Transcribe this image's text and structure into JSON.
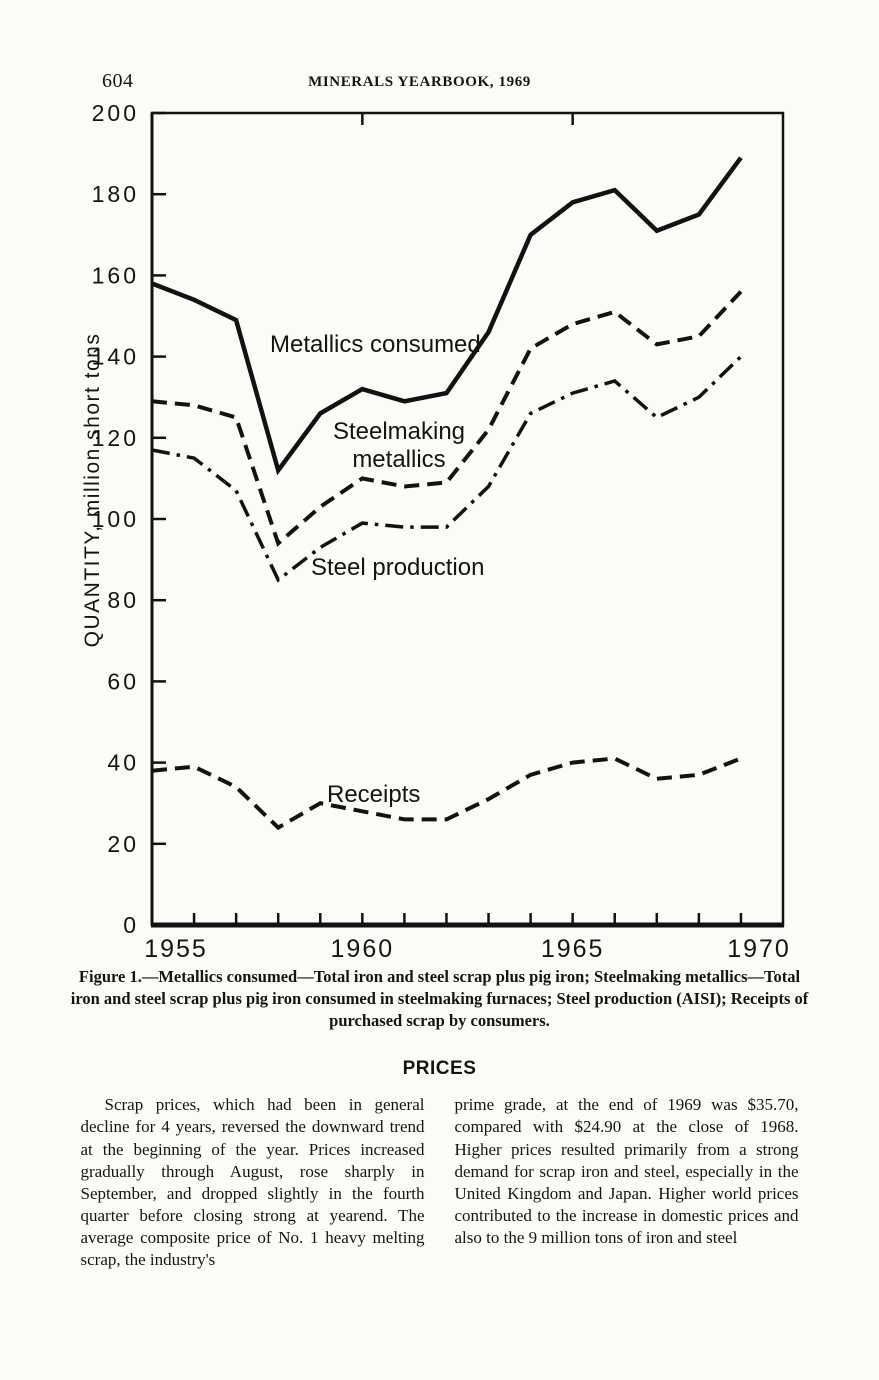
{
  "header": {
    "page_number": "604",
    "running_title": "MINERALS YEARBOOK, 1969"
  },
  "chart_data": {
    "type": "line",
    "title": "",
    "ylabel": "QUANTITY, million short tons",
    "xlabel": "",
    "ylim": [
      0,
      200
    ],
    "ytick_step": 20,
    "xlim": [
      1955,
      1970
    ],
    "xticks": [
      1955,
      1960,
      1965,
      1970
    ],
    "grid": "off",
    "legend_position": "inline-labels",
    "x": [
      1955,
      1956,
      1957,
      1958,
      1959,
      1960,
      1961,
      1962,
      1963,
      1964,
      1965,
      1966,
      1967,
      1968,
      1969
    ],
    "series": [
      {
        "name": "Metallics consumed",
        "style": "solid",
        "values": [
          158,
          154,
          149,
          112,
          126,
          132,
          129,
          131,
          146,
          170,
          178,
          181,
          171,
          175,
          189
        ]
      },
      {
        "name": "Steelmaking metallics",
        "style": "dashed",
        "values": [
          129,
          128,
          125,
          94,
          103,
          110,
          108,
          109,
          122,
          142,
          148,
          151,
          143,
          145,
          156
        ]
      },
      {
        "name": "Steel production",
        "style": "dashdot",
        "values": [
          117,
          115,
          107,
          85,
          93,
          99,
          98,
          98,
          108,
          126,
          131,
          134,
          125,
          130,
          140
        ]
      },
      {
        "name": "Receipts",
        "style": "dashed",
        "values": [
          38,
          39,
          34,
          24,
          30,
          28,
          26,
          26,
          31,
          37,
          40,
          41,
          36,
          37,
          41
        ]
      }
    ]
  },
  "caption": {
    "text": "Figure 1.—Metallics consumed—Total iron and steel scrap plus pig iron; Steelmaking metallics—Total iron and steel scrap plus pig iron consumed in steelmaking furnaces; Steel production (AISI); Receipts of purchased scrap by consumers."
  },
  "prices": {
    "heading": "PRICES",
    "left_column": "Scrap prices, which had been in general decline for 4 years, reversed the downward trend at the beginning of the year. Prices increased gradually through August, rose sharply in September, and dropped slightly in the fourth quarter before closing strong at yearend. The average composite price of No. 1 heavy melting scrap, the industry's",
    "right_column": "prime grade, at the end of 1969 was $35.70, compared with $24.90 at the close of 1968. Higher prices resulted primarily from a strong demand for scrap iron and steel, especially in the United Kingdom and Japan. Higher world prices contributed to the increase in domestic prices and also to the 9 million tons of iron and steel"
  }
}
